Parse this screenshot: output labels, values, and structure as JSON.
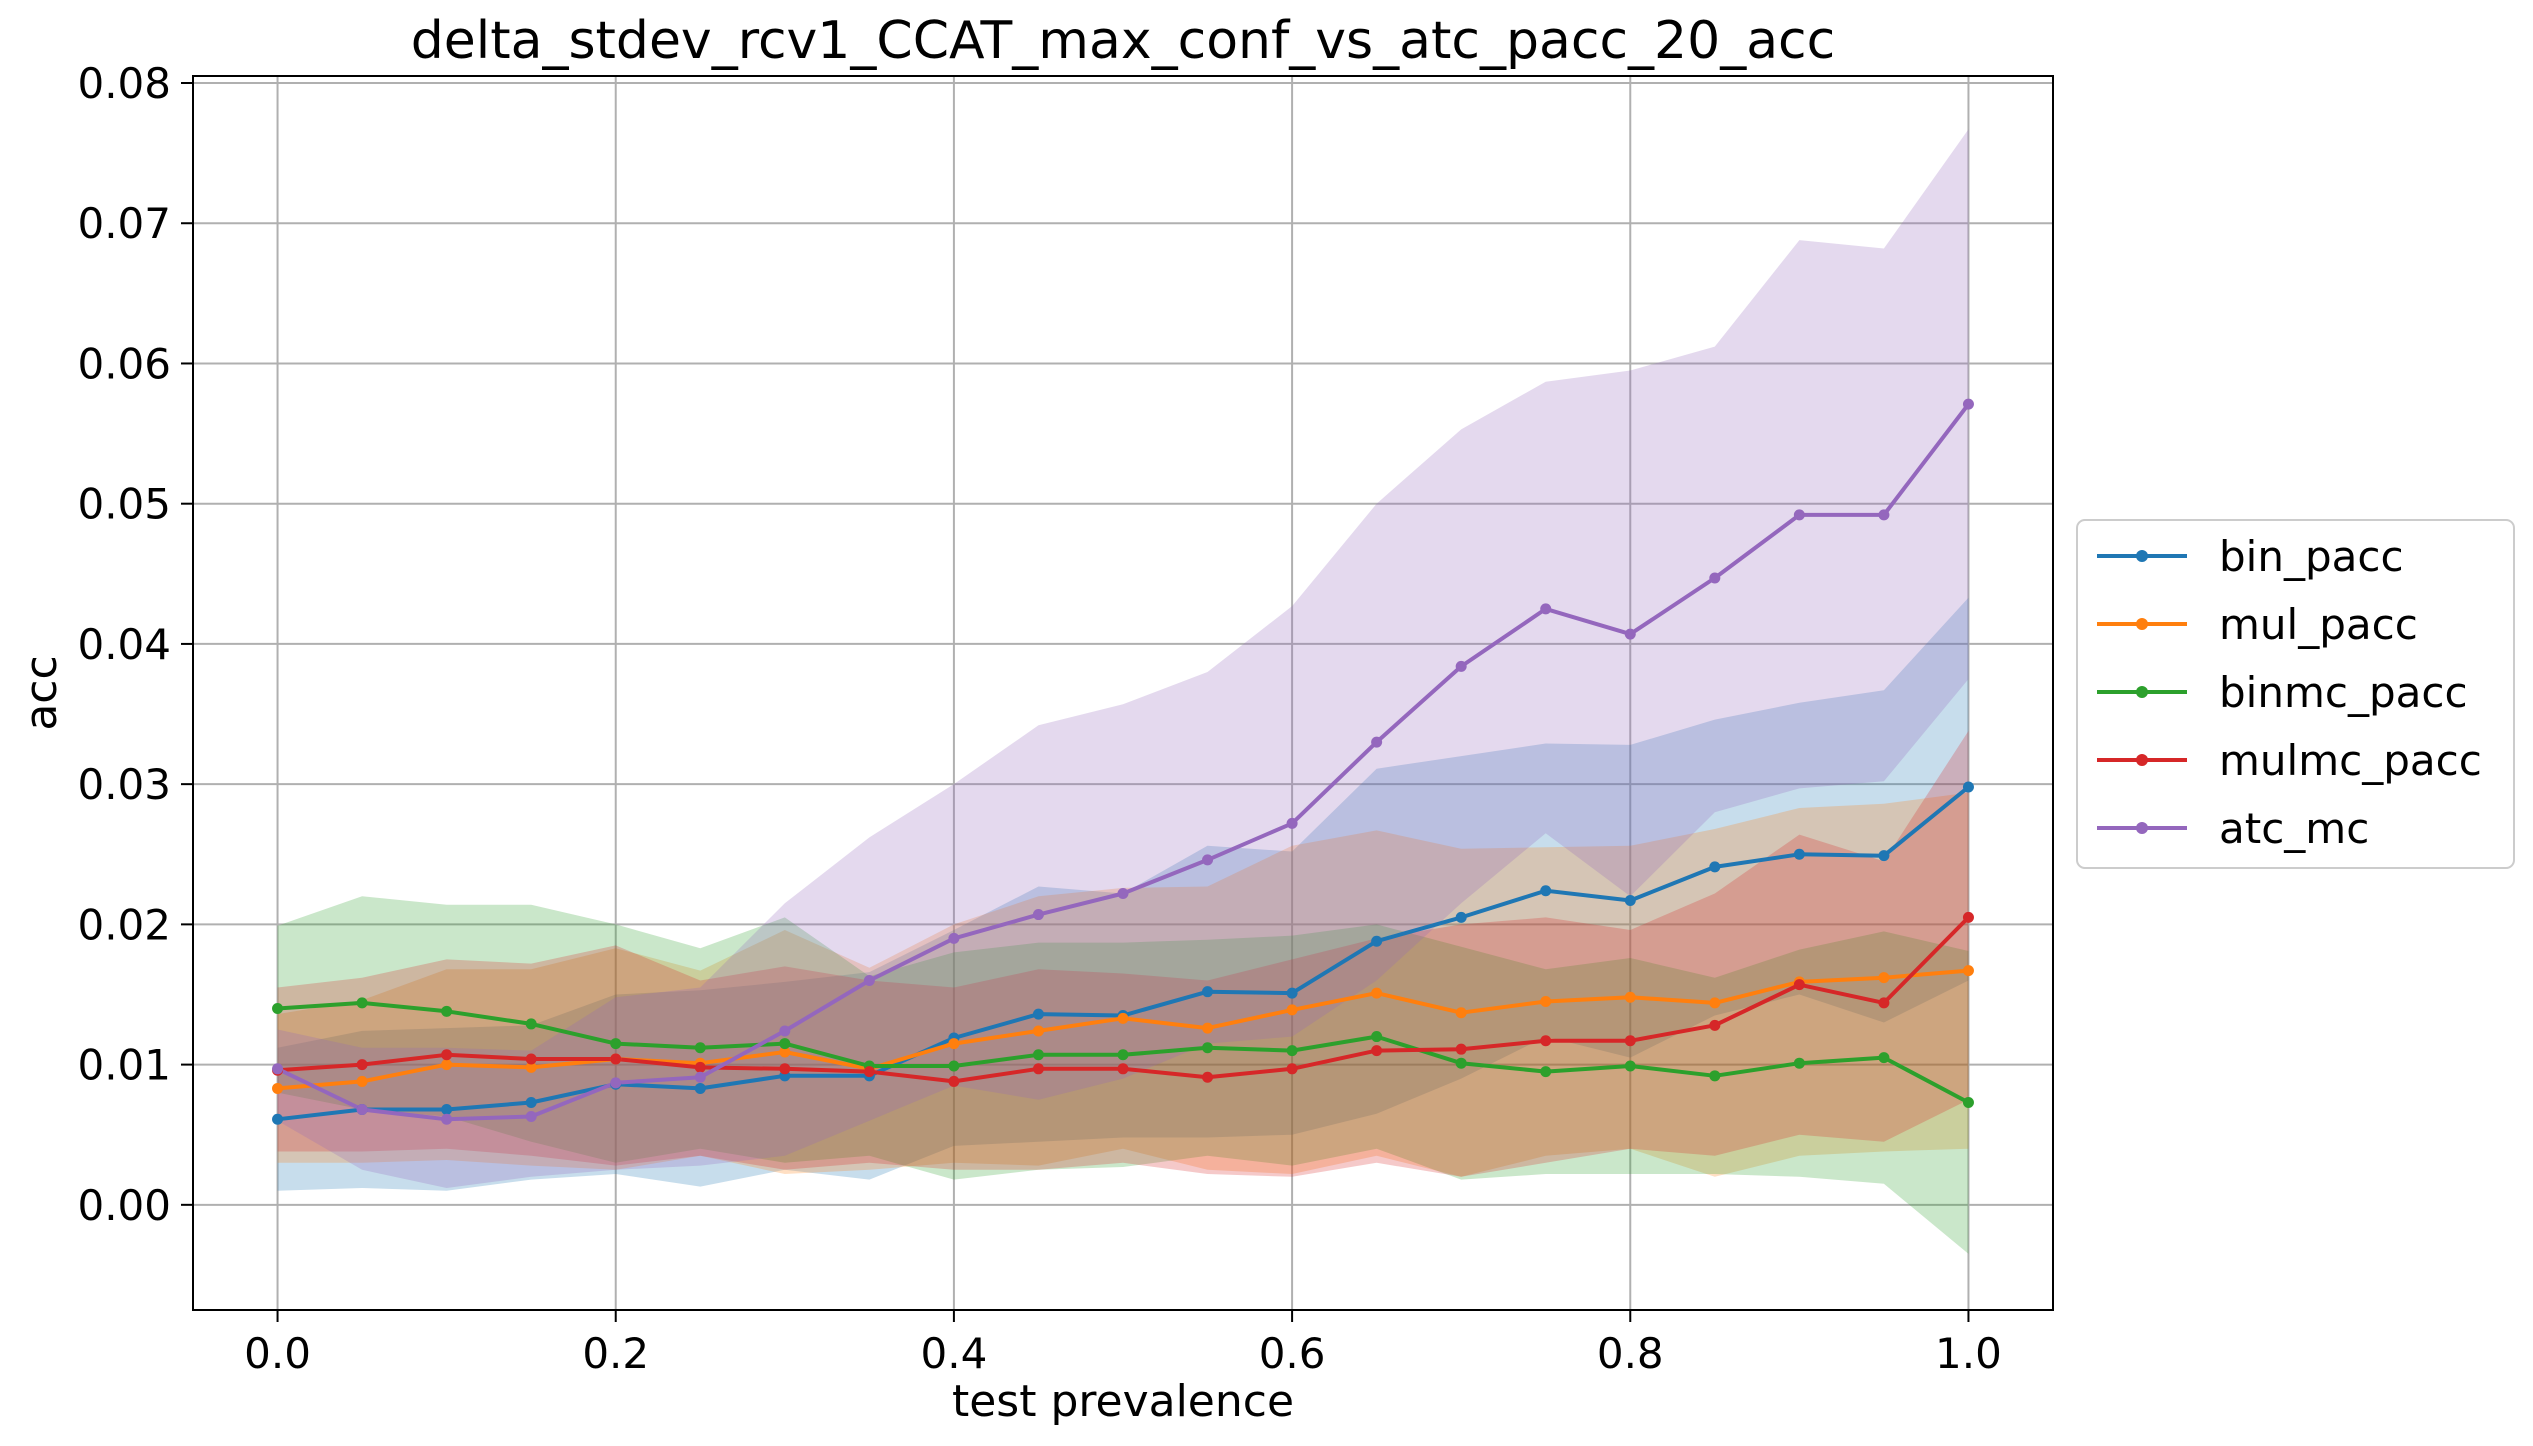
{
  "chart_data": {
    "type": "line",
    "title": "delta_stdev_rcv1_CCAT_max_conf_vs_atc_pacc_20_acc",
    "xlabel": "test prevalence",
    "ylabel": "acc",
    "xlim": [
      -0.05,
      1.05
    ],
    "ylim": [
      -0.0075,
      0.0805
    ],
    "xticks": [
      0.0,
      0.2,
      0.4,
      0.6,
      0.8,
      1.0
    ],
    "xtick_labels": [
      "0.0",
      "0.2",
      "0.4",
      "0.6",
      "0.8",
      "1.0"
    ],
    "yticks": [
      0.0,
      0.01,
      0.02,
      0.03,
      0.04,
      0.05,
      0.06,
      0.07,
      0.08
    ],
    "ytick_labels": [
      "0.00",
      "0.01",
      "0.02",
      "0.03",
      "0.04",
      "0.05",
      "0.06",
      "0.07",
      "0.08"
    ],
    "grid": true,
    "legend_position": "center-right outside",
    "x": [
      0.0,
      0.05,
      0.1,
      0.15,
      0.2,
      0.25,
      0.3,
      0.35,
      0.4,
      0.45,
      0.5,
      0.55,
      0.6,
      0.65,
      0.7,
      0.75,
      0.8,
      0.85,
      0.9,
      0.95,
      1.0
    ],
    "series": [
      {
        "name": "bin_pacc",
        "color": "#1f77b4",
        "values": [
          0.0061,
          0.0068,
          0.0068,
          0.0073,
          0.0086,
          0.0083,
          0.0092,
          0.0092,
          0.0119,
          0.0136,
          0.0135,
          0.0152,
          0.0151,
          0.0188,
          0.0205,
          0.0224,
          0.0217,
          0.0241,
          0.025,
          0.0249,
          0.0298
        ],
        "lower": [
          0.001,
          0.0012,
          0.001,
          0.0018,
          0.0022,
          0.0013,
          0.0025,
          0.0018,
          0.0042,
          0.0045,
          0.0048,
          0.0048,
          0.005,
          0.0065,
          0.009,
          0.012,
          0.0105,
          0.0135,
          0.015,
          0.013,
          0.016
        ],
        "upper": [
          0.0112,
          0.0124,
          0.0126,
          0.0128,
          0.015,
          0.0153,
          0.0159,
          0.0166,
          0.0196,
          0.0227,
          0.0222,
          0.0256,
          0.0252,
          0.0311,
          0.032,
          0.0329,
          0.0328,
          0.0346,
          0.0358,
          0.0367,
          0.0433
        ]
      },
      {
        "name": "mul_pacc",
        "color": "#ff7f0e",
        "values": [
          0.0083,
          0.0088,
          0.01,
          0.0098,
          0.0104,
          0.0101,
          0.0109,
          0.0097,
          0.0115,
          0.0124,
          0.0133,
          0.0126,
          0.0139,
          0.0151,
          0.0137,
          0.0145,
          0.0148,
          0.0144,
          0.0159,
          0.0162,
          0.0167
        ],
        "lower": [
          0.003,
          0.003,
          0.0032,
          0.0028,
          0.0025,
          0.0035,
          0.0022,
          0.0025,
          0.003,
          0.0028,
          0.004,
          0.0025,
          0.0022,
          0.0035,
          0.002,
          0.0035,
          0.004,
          0.002,
          0.0035,
          0.0038,
          0.004
        ],
        "upper": [
          0.0136,
          0.0146,
          0.0168,
          0.0168,
          0.0183,
          0.0167,
          0.0196,
          0.0169,
          0.02,
          0.022,
          0.0226,
          0.0227,
          0.0256,
          0.0267,
          0.0254,
          0.0255,
          0.0256,
          0.0268,
          0.0283,
          0.0286,
          0.0294
        ]
      },
      {
        "name": "binmc_pacc",
        "color": "#2ca02c",
        "values": [
          0.014,
          0.0144,
          0.0138,
          0.0129,
          0.0115,
          0.0112,
          0.0115,
          0.0099,
          0.0099,
          0.0107,
          0.0107,
          0.0112,
          0.011,
          0.012,
          0.0101,
          0.0095,
          0.0099,
          0.0092,
          0.0101,
          0.0105,
          0.0073
        ],
        "lower": [
          0.008,
          0.0068,
          0.0063,
          0.0045,
          0.003,
          0.004,
          0.003,
          0.0035,
          0.0018,
          0.0025,
          0.0027,
          0.0035,
          0.0028,
          0.004,
          0.0018,
          0.0022,
          0.0022,
          0.0022,
          0.002,
          0.0015,
          -0.0035
        ],
        "upper": [
          0.0199,
          0.022,
          0.0214,
          0.0214,
          0.02,
          0.0183,
          0.0205,
          0.0163,
          0.018,
          0.0187,
          0.0187,
          0.0189,
          0.0192,
          0.02,
          0.0184,
          0.0168,
          0.0176,
          0.0162,
          0.0182,
          0.0195,
          0.0181
        ]
      },
      {
        "name": "mulmc_pacc",
        "color": "#d62728",
        "values": [
          0.0096,
          0.01,
          0.0107,
          0.0104,
          0.0104,
          0.0098,
          0.0097,
          0.0095,
          0.0088,
          0.0097,
          0.0097,
          0.0091,
          0.0097,
          0.011,
          0.0111,
          0.0117,
          0.0117,
          0.0128,
          0.0157,
          0.0144,
          0.0205
        ],
        "lower": [
          0.0038,
          0.0038,
          0.004,
          0.0035,
          0.0028,
          0.0035,
          0.0025,
          0.003,
          0.0025,
          0.0025,
          0.003,
          0.0022,
          0.002,
          0.003,
          0.002,
          0.003,
          0.004,
          0.0035,
          0.005,
          0.0045,
          0.0075
        ],
        "upper": [
          0.0155,
          0.0162,
          0.0175,
          0.0172,
          0.0185,
          0.016,
          0.017,
          0.016,
          0.0155,
          0.0168,
          0.0165,
          0.016,
          0.0175,
          0.019,
          0.02,
          0.0205,
          0.0196,
          0.0222,
          0.0264,
          0.0245,
          0.0338
        ]
      },
      {
        "name": "atc_mc",
        "color": "#9467bd",
        "values": [
          0.0097,
          0.0068,
          0.0061,
          0.0063,
          0.0087,
          0.0091,
          0.0124,
          0.016,
          0.019,
          0.0207,
          0.0222,
          0.0246,
          0.0272,
          0.033,
          0.0384,
          0.0425,
          0.0407,
          0.0447,
          0.0492,
          0.0492,
          0.0571
        ],
        "lower": [
          0.006,
          0.0025,
          0.0012,
          0.002,
          0.0025,
          0.0028,
          0.0035,
          0.006,
          0.0085,
          0.0075,
          0.009,
          0.0115,
          0.012,
          0.016,
          0.0215,
          0.0265,
          0.022,
          0.028,
          0.0297,
          0.0302,
          0.0375
        ],
        "upper": [
          0.0125,
          0.0112,
          0.0112,
          0.011,
          0.0148,
          0.0155,
          0.0215,
          0.0262,
          0.03,
          0.0342,
          0.0357,
          0.038,
          0.0427,
          0.05,
          0.0553,
          0.0587,
          0.0595,
          0.0612,
          0.0688,
          0.0682,
          0.0767
        ]
      }
    ]
  }
}
